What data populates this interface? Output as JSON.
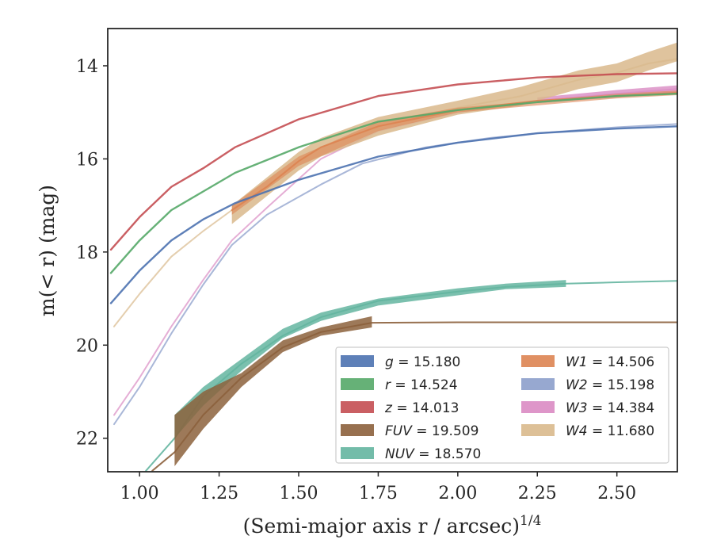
{
  "chart_data": {
    "type": "line",
    "title": "",
    "xlabel": "(Semi-major axis r / arcsec)",
    "xlabel_exponent": "1/4",
    "ylabel": "m(< r) (mag)",
    "xlim": [
      0.9,
      2.69
    ],
    "ylim": [
      22.72,
      13.2
    ],
    "y_inverted": true,
    "grid": false,
    "legend_position": "lower-right",
    "legend_columns": 2,
    "x_ticks": [
      1.0,
      1.25,
      1.5,
      1.75,
      2.0,
      2.25,
      2.5
    ],
    "x_tick_labels": [
      "1.00",
      "1.25",
      "1.50",
      "1.75",
      "2.00",
      "2.25",
      "2.50"
    ],
    "y_ticks": [
      14,
      16,
      18,
      20,
      22
    ],
    "y_tick_labels": [
      "14",
      "16",
      "18",
      "20",
      "22"
    ],
    "series": [
      {
        "name": "g",
        "legend_label": "g = 15.180",
        "color": "#4c72b0",
        "line_width": 2.4,
        "points": [
          [
            0.91,
            19.1
          ],
          [
            1.0,
            18.4
          ],
          [
            1.1,
            17.75
          ],
          [
            1.2,
            17.3
          ],
          [
            1.3,
            16.95
          ],
          [
            1.5,
            16.45
          ],
          [
            1.75,
            15.95
          ],
          [
            2.0,
            15.65
          ],
          [
            2.25,
            15.45
          ],
          [
            2.5,
            15.35
          ],
          [
            2.69,
            15.3
          ]
        ],
        "band": []
      },
      {
        "name": "r",
        "legend_label": "r = 14.524",
        "color": "#55a868",
        "line_width": 2.4,
        "points": [
          [
            0.91,
            18.45
          ],
          [
            1.0,
            17.75
          ],
          [
            1.1,
            17.1
          ],
          [
            1.2,
            16.7
          ],
          [
            1.3,
            16.3
          ],
          [
            1.5,
            15.75
          ],
          [
            1.75,
            15.2
          ],
          [
            2.0,
            14.95
          ],
          [
            2.25,
            14.78
          ],
          [
            2.5,
            14.65
          ],
          [
            2.69,
            14.6
          ]
        ],
        "band": []
      },
      {
        "name": "z",
        "legend_label": "z = 14.013",
        "color": "#c44e52",
        "line_width": 2.4,
        "points": [
          [
            0.91,
            17.95
          ],
          [
            1.0,
            17.25
          ],
          [
            1.1,
            16.6
          ],
          [
            1.2,
            16.2
          ],
          [
            1.3,
            15.75
          ],
          [
            1.5,
            15.15
          ],
          [
            1.75,
            14.65
          ],
          [
            2.0,
            14.4
          ],
          [
            2.25,
            14.25
          ],
          [
            2.5,
            14.18
          ],
          [
            2.69,
            14.16
          ]
        ],
        "band": []
      },
      {
        "name": "FUV",
        "legend_label": "FUV = 19.509",
        "color": "#8c613c",
        "line_width": 2.0,
        "points": [
          [
            1.04,
            22.7
          ],
          [
            1.11,
            22.3
          ],
          [
            1.2,
            21.5
          ],
          [
            1.32,
            20.7
          ],
          [
            1.45,
            20.05
          ],
          [
            1.57,
            19.72
          ],
          [
            1.73,
            19.52
          ],
          [
            2.0,
            19.51
          ],
          [
            2.25,
            19.51
          ],
          [
            2.5,
            19.51
          ],
          [
            2.69,
            19.51
          ]
        ],
        "band": [
          [
            1.11,
            21.5,
            22.6
          ],
          [
            1.2,
            21.0,
            21.8
          ],
          [
            1.32,
            20.6,
            20.9
          ],
          [
            1.45,
            19.9,
            20.15
          ],
          [
            1.57,
            19.62,
            19.8
          ],
          [
            1.73,
            19.38,
            19.62
          ]
        ],
        "band_opacity": 0.85
      },
      {
        "name": "NUV",
        "legend_label": "NUV = 18.570",
        "color": "#64b5a0",
        "line_width": 2.0,
        "points": [
          [
            1.02,
            22.7
          ],
          [
            1.11,
            22.0
          ],
          [
            1.2,
            21.1
          ],
          [
            1.32,
            20.4
          ],
          [
            1.45,
            19.8
          ],
          [
            1.57,
            19.4
          ],
          [
            1.75,
            19.05
          ],
          [
            2.0,
            18.85
          ],
          [
            2.15,
            18.75
          ],
          [
            2.34,
            18.68
          ],
          [
            2.5,
            18.65
          ],
          [
            2.69,
            18.62
          ]
        ],
        "band": [
          [
            1.11,
            21.5,
            22.0
          ],
          [
            1.2,
            20.9,
            21.3
          ],
          [
            1.32,
            20.3,
            20.55
          ],
          [
            1.45,
            19.65,
            19.85
          ],
          [
            1.57,
            19.3,
            19.48
          ],
          [
            1.75,
            19.0,
            19.15
          ],
          [
            2.0,
            18.78,
            18.93
          ],
          [
            2.15,
            18.68,
            18.8
          ],
          [
            2.34,
            18.6,
            18.75
          ]
        ],
        "band_opacity": 0.85
      },
      {
        "name": "W1",
        "legend_label": "W1 = 14.506",
        "color": "#dd8452",
        "line_width": 2.0,
        "points": [
          [
            1.29,
            17.1
          ],
          [
            1.4,
            16.6
          ],
          [
            1.5,
            16.05
          ],
          [
            1.57,
            15.75
          ],
          [
            1.75,
            15.3
          ],
          [
            2.0,
            14.95
          ],
          [
            2.25,
            14.75
          ],
          [
            2.5,
            14.65
          ],
          [
            2.69,
            14.58
          ]
        ],
        "band": [
          [
            1.29,
            17.0,
            17.2
          ],
          [
            1.5,
            15.95,
            16.15
          ],
          [
            1.75,
            15.2,
            15.4
          ],
          [
            2.0,
            14.9,
            15.0
          ],
          [
            2.5,
            14.6,
            14.7
          ],
          [
            2.69,
            14.53,
            14.63
          ]
        ],
        "band_opacity": 0.6
      },
      {
        "name": "W2",
        "legend_label": "W2 = 15.198",
        "color": "#8c9fcb",
        "line_width": 2.0,
        "points": [
          [
            0.92,
            21.7
          ],
          [
            1.0,
            20.9
          ],
          [
            1.1,
            19.75
          ],
          [
            1.2,
            18.7
          ],
          [
            1.29,
            17.85
          ],
          [
            1.4,
            17.2
          ],
          [
            1.57,
            16.55
          ],
          [
            1.7,
            16.1
          ],
          [
            1.9,
            15.75
          ],
          [
            2.1,
            15.55
          ],
          [
            2.25,
            15.45
          ],
          [
            2.5,
            15.32
          ],
          [
            2.69,
            15.25
          ]
        ],
        "band": [],
        "line_opacity": 0.75
      },
      {
        "name": "W3",
        "legend_label": "W3 = 14.384",
        "color": "#da8bc3",
        "line_width": 2.0,
        "points": [
          [
            0.92,
            21.5
          ],
          [
            1.0,
            20.7
          ],
          [
            1.1,
            19.6
          ],
          [
            1.2,
            18.6
          ],
          [
            1.29,
            17.75
          ],
          [
            1.4,
            17.05
          ],
          [
            1.57,
            16.0
          ],
          [
            1.75,
            15.4
          ],
          [
            2.0,
            15.0
          ],
          [
            2.25,
            14.75
          ],
          [
            2.5,
            14.6
          ],
          [
            2.69,
            14.5
          ]
        ],
        "band": [
          [
            2.25,
            14.68,
            14.8
          ],
          [
            2.5,
            14.52,
            14.68
          ],
          [
            2.69,
            14.42,
            14.58
          ]
        ],
        "band_opacity": 0.8,
        "line_opacity": 0.7
      },
      {
        "name": "W4",
        "legend_label": "W4 = 11.680",
        "color": "#d9b98c",
        "line_width": 2.0,
        "points": [
          [
            0.92,
            19.6
          ],
          [
            1.0,
            18.9
          ],
          [
            1.1,
            18.1
          ],
          [
            1.2,
            17.55
          ],
          [
            1.29,
            17.1
          ],
          [
            1.4,
            16.6
          ],
          [
            1.5,
            16.05
          ],
          [
            1.57,
            15.75
          ],
          [
            1.75,
            15.3
          ],
          [
            2.0,
            14.9
          ],
          [
            2.2,
            14.65
          ],
          [
            2.38,
            14.3
          ],
          [
            2.5,
            14.15
          ],
          [
            2.6,
            13.95
          ],
          [
            2.69,
            13.85
          ]
        ],
        "band": [
          [
            1.29,
            17.0,
            17.4
          ],
          [
            1.4,
            16.4,
            16.8
          ],
          [
            1.5,
            15.85,
            16.25
          ],
          [
            1.57,
            15.55,
            15.95
          ],
          [
            1.75,
            15.1,
            15.5
          ],
          [
            2.0,
            14.75,
            15.05
          ],
          [
            2.2,
            14.45,
            14.85
          ],
          [
            2.38,
            14.1,
            14.5
          ],
          [
            2.5,
            13.95,
            14.35
          ],
          [
            2.6,
            13.7,
            14.1
          ],
          [
            2.69,
            13.5,
            13.9
          ]
        ],
        "band_opacity": 0.85,
        "line_opacity": 0.7
      }
    ],
    "legend_order": [
      [
        "g",
        "r",
        "z",
        "FUV",
        "NUV"
      ],
      [
        "W1",
        "W2",
        "W3",
        "W4"
      ]
    ]
  }
}
